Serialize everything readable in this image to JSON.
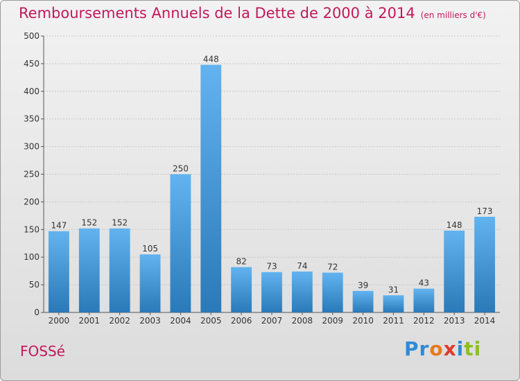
{
  "header": {
    "title": "Remboursements Annuels de la Dette de 2000 à 2014",
    "subtitle": "(en milliers d'€)"
  },
  "commune": "FOSSé",
  "logo": {
    "parts": [
      "Pr",
      "o",
      "x",
      "i",
      "ti"
    ]
  },
  "colors": {
    "bar_top": "#62b3ef",
    "bar_bottom": "#2a79b8",
    "title": "#c2185b"
  },
  "chart_data": {
    "type": "bar",
    "title": "Remboursements Annuels de la Dette de 2000 à 2014",
    "subtitle": "(en milliers d'€)",
    "xlabel": "",
    "ylabel": "",
    "categories": [
      "2000",
      "2001",
      "2002",
      "2003",
      "2004",
      "2005",
      "2006",
      "2007",
      "2008",
      "2009",
      "2010",
      "2011",
      "2012",
      "2013",
      "2014"
    ],
    "values": [
      147,
      152,
      152,
      105,
      250,
      448,
      82,
      73,
      74,
      72,
      39,
      31,
      43,
      148,
      173
    ],
    "ylim": [
      0,
      500
    ],
    "yticks": [
      0,
      50,
      100,
      150,
      200,
      250,
      300,
      350,
      400,
      450,
      500
    ],
    "grid": true,
    "data_labels": true
  }
}
